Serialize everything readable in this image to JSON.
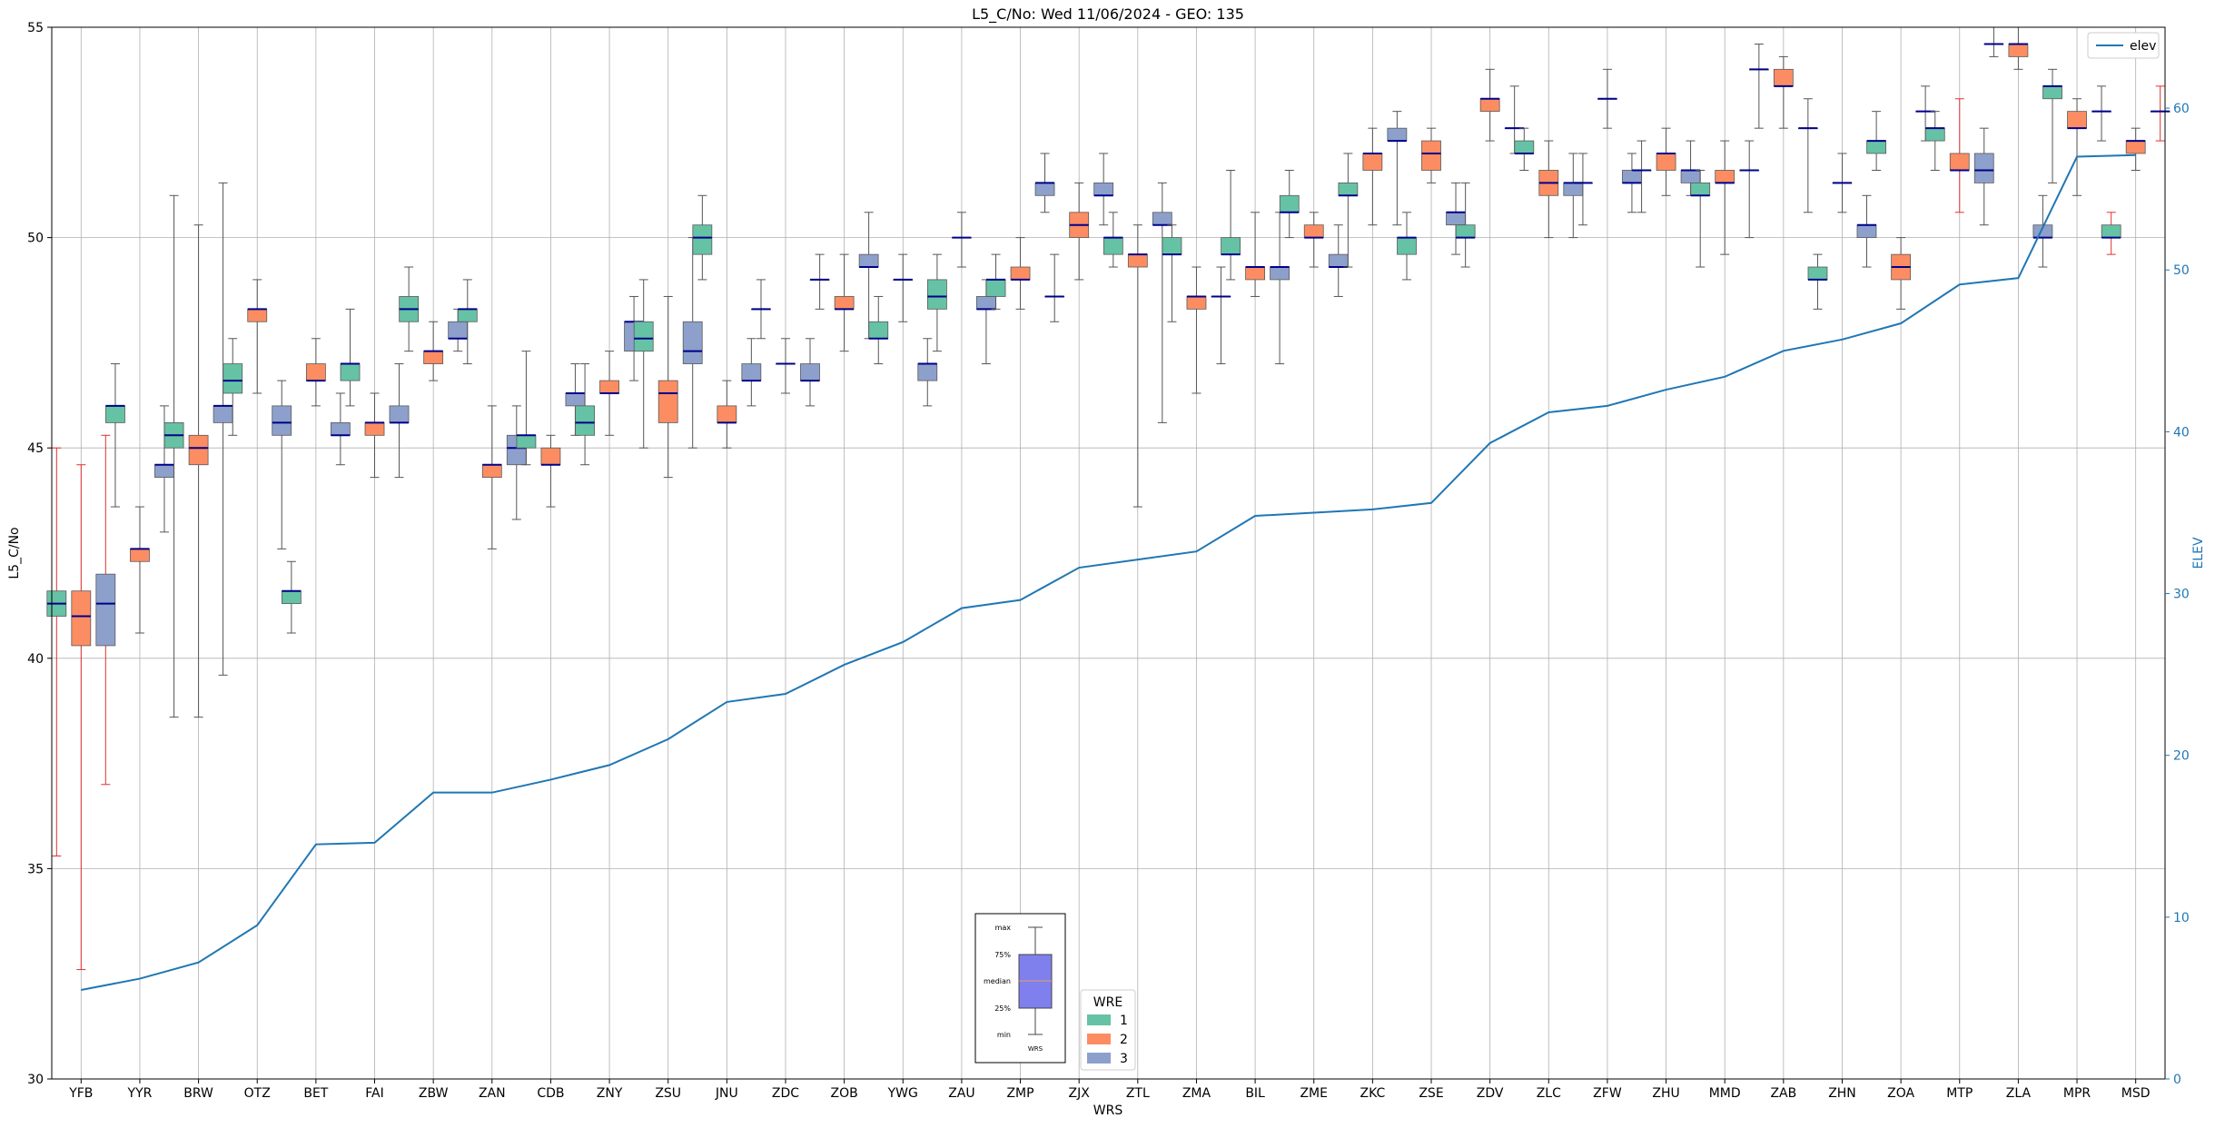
{
  "chart_data": {
    "type": "box",
    "title": "L5_C/No: Wed 11/06/2024 - GEO: 135",
    "xlabel": "WRS",
    "ylabel": "L5_C/No",
    "y2label": "ELEV",
    "ylim": [
      30,
      55
    ],
    "y2lim": [
      0,
      65
    ],
    "yticks": [
      30,
      35,
      40,
      45,
      50,
      55
    ],
    "y2ticks": [
      0,
      10,
      20,
      30,
      40,
      50,
      60
    ],
    "grid": true,
    "colors": {
      "1": "#66c2a5",
      "2": "#fc8d62",
      "3": "#8da0cb",
      "median": "#00008b",
      "elev": "#1f77b4",
      "whisker": "#555555",
      "whisker_alert": "#e03030"
    },
    "categories": [
      "YFB",
      "YYR",
      "BRW",
      "OTZ",
      "BET",
      "FAI",
      "ZBW",
      "ZAN",
      "CDB",
      "ZNY",
      "ZSU",
      "JNU",
      "ZDC",
      "ZOB",
      "YWG",
      "ZAU",
      "ZMP",
      "ZJX",
      "ZTL",
      "ZMA",
      "BIL",
      "ZME",
      "ZKC",
      "ZSE",
      "ZDV",
      "ZLC",
      "ZFW",
      "ZHU",
      "MMD",
      "ZAB",
      "ZHN",
      "ZOA",
      "MTP",
      "ZLA",
      "MPR",
      "MSD"
    ],
    "elev": [
      5.5,
      6.2,
      7.2,
      9.5,
      14.5,
      14.6,
      17.7,
      17.7,
      18.5,
      19.4,
      21.0,
      23.3,
      23.8,
      25.6,
      27.0,
      29.1,
      29.6,
      31.6,
      32.1,
      32.6,
      34.8,
      35.0,
      35.2,
      35.6,
      39.3,
      41.2,
      41.6,
      42.6,
      43.4,
      45.0,
      45.7,
      46.7,
      49.1,
      49.5,
      57.0,
      57.1
    ],
    "boxes": [
      {
        "cat": "YFB",
        "wre": 1,
        "min": 35.3,
        "q1": 41.0,
        "med": 41.3,
        "q3": 41.6,
        "max": 45.0,
        "alert": true
      },
      {
        "cat": "YFB",
        "wre": 2,
        "min": 32.6,
        "q1": 40.3,
        "med": 41.0,
        "q3": 41.6,
        "max": 44.6,
        "alert": true
      },
      {
        "cat": "YFB",
        "wre": 3,
        "min": 37.0,
        "q1": 40.3,
        "med": 41.3,
        "q3": 42.0,
        "max": 45.3,
        "alert": true
      },
      {
        "cat": "YYR",
        "wre": 1,
        "min": 43.6,
        "q1": 45.6,
        "med": 46.0,
        "q3": 46.0,
        "max": 47.0
      },
      {
        "cat": "YYR",
        "wre": 2,
        "min": 40.6,
        "q1": 42.3,
        "med": 42.6,
        "q3": 42.6,
        "max": 43.6
      },
      {
        "cat": "YYR",
        "wre": 3,
        "min": 43.0,
        "q1": 44.3,
        "med": 44.6,
        "q3": 44.6,
        "max": 46.0
      },
      {
        "cat": "BRW",
        "wre": 1,
        "min": 38.6,
        "q1": 45.0,
        "med": 45.3,
        "q3": 45.6,
        "max": 51.0
      },
      {
        "cat": "BRW",
        "wre": 2,
        "min": 38.6,
        "q1": 44.6,
        "med": 45.0,
        "q3": 45.3,
        "max": 50.3
      },
      {
        "cat": "BRW",
        "wre": 3,
        "min": 39.6,
        "q1": 45.6,
        "med": 46.0,
        "q3": 46.0,
        "max": 51.3
      },
      {
        "cat": "OTZ",
        "wre": 1,
        "min": 45.3,
        "q1": 46.3,
        "med": 46.6,
        "q3": 47.0,
        "max": 47.6
      },
      {
        "cat": "OTZ",
        "wre": 2,
        "min": 46.3,
        "q1": 48.0,
        "med": 48.3,
        "q3": 48.3,
        "max": 49.0
      },
      {
        "cat": "OTZ",
        "wre": 3,
        "min": 42.6,
        "q1": 45.3,
        "med": 45.6,
        "q3": 46.0,
        "max": 46.6
      },
      {
        "cat": "BET",
        "wre": 1,
        "min": 40.6,
        "q1": 41.3,
        "med": 41.6,
        "q3": 41.6,
        "max": 42.3
      },
      {
        "cat": "BET",
        "wre": 2,
        "min": 46.0,
        "q1": 46.6,
        "med": 46.6,
        "q3": 47.0,
        "max": 47.6
      },
      {
        "cat": "BET",
        "wre": 3,
        "min": 44.6,
        "q1": 45.3,
        "med": 45.3,
        "q3": 45.6,
        "max": 46.3
      },
      {
        "cat": "FAI",
        "wre": 1,
        "min": 46.0,
        "q1": 46.6,
        "med": 47.0,
        "q3": 47.0,
        "max": 48.3
      },
      {
        "cat": "FAI",
        "wre": 2,
        "min": 44.3,
        "q1": 45.3,
        "med": 45.6,
        "q3": 45.6,
        "max": 46.3
      },
      {
        "cat": "FAI",
        "wre": 3,
        "min": 44.3,
        "q1": 45.6,
        "med": 45.6,
        "q3": 46.0,
        "max": 47.0
      },
      {
        "cat": "ZBW",
        "wre": 1,
        "min": 47.3,
        "q1": 48.0,
        "med": 48.3,
        "q3": 48.6,
        "max": 49.3
      },
      {
        "cat": "ZBW",
        "wre": 2,
        "min": 46.6,
        "q1": 47.0,
        "med": 47.3,
        "q3": 47.3,
        "max": 48.0
      },
      {
        "cat": "ZBW",
        "wre": 3,
        "min": 47.3,
        "q1": 47.6,
        "med": 47.6,
        "q3": 48.0,
        "max": 48.3
      },
      {
        "cat": "ZAN",
        "wre": 1,
        "min": 47.0,
        "q1": 48.0,
        "med": 48.3,
        "q3": 48.3,
        "max": 49.0
      },
      {
        "cat": "ZAN",
        "wre": 2,
        "min": 42.6,
        "q1": 44.3,
        "med": 44.6,
        "q3": 44.6,
        "max": 46.0
      },
      {
        "cat": "ZAN",
        "wre": 3,
        "min": 43.3,
        "q1": 44.6,
        "med": 45.0,
        "q3": 45.3,
        "max": 46.0
      },
      {
        "cat": "CDB",
        "wre": 1,
        "min": 44.6,
        "q1": 45.0,
        "med": 45.3,
        "q3": 45.3,
        "max": 47.3
      },
      {
        "cat": "CDB",
        "wre": 2,
        "min": 43.6,
        "q1": 44.6,
        "med": 44.6,
        "q3": 45.0,
        "max": 45.3
      },
      {
        "cat": "CDB",
        "wre": 3,
        "min": 45.3,
        "q1": 46.0,
        "med": 46.3,
        "q3": 46.3,
        "max": 47.0
      },
      {
        "cat": "ZNY",
        "wre": 1,
        "min": 44.6,
        "q1": 45.3,
        "med": 45.6,
        "q3": 46.0,
        "max": 47.0
      },
      {
        "cat": "ZNY",
        "wre": 2,
        "min": 45.3,
        "q1": 46.3,
        "med": 46.3,
        "q3": 46.6,
        "max": 47.3
      },
      {
        "cat": "ZNY",
        "wre": 3,
        "min": 46.6,
        "q1": 47.3,
        "med": 48.0,
        "q3": 48.0,
        "max": 48.6
      },
      {
        "cat": "ZSU",
        "wre": 1,
        "min": 45.0,
        "q1": 47.3,
        "med": 47.6,
        "q3": 48.0,
        "max": 49.0
      },
      {
        "cat": "ZSU",
        "wre": 2,
        "min": 44.3,
        "q1": 45.6,
        "med": 46.3,
        "q3": 46.6,
        "max": 48.6
      },
      {
        "cat": "ZSU",
        "wre": 3,
        "min": 45.0,
        "q1": 47.0,
        "med": 47.3,
        "q3": 48.0,
        "max": 50.0
      },
      {
        "cat": "JNU",
        "wre": 1,
        "min": 49.0,
        "q1": 49.6,
        "med": 50.0,
        "q3": 50.3,
        "max": 51.0
      },
      {
        "cat": "JNU",
        "wre": 2,
        "min": 45.0,
        "q1": 45.6,
        "med": 45.6,
        "q3": 46.0,
        "max": 46.6
      },
      {
        "cat": "JNU",
        "wre": 3,
        "min": 46.0,
        "q1": 46.6,
        "med": 46.6,
        "q3": 47.0,
        "max": 47.6
      },
      {
        "cat": "ZDC",
        "wre": 1,
        "min": 47.6,
        "q1": 48.3,
        "med": 48.3,
        "q3": 48.3,
        "max": 49.0
      },
      {
        "cat": "ZDC",
        "wre": 2,
        "min": 46.3,
        "q1": 47.0,
        "med": 47.0,
        "q3": 47.0,
        "max": 47.6
      },
      {
        "cat": "ZDC",
        "wre": 3,
        "min": 46.0,
        "q1": 46.6,
        "med": 46.6,
        "q3": 47.0,
        "max": 47.6
      },
      {
        "cat": "ZOB",
        "wre": 1,
        "min": 48.3,
        "q1": 49.0,
        "med": 49.0,
        "q3": 49.0,
        "max": 49.6
      },
      {
        "cat": "ZOB",
        "wre": 2,
        "min": 47.3,
        "q1": 48.3,
        "med": 48.3,
        "q3": 48.6,
        "max": 49.6
      },
      {
        "cat": "ZOB",
        "wre": 3,
        "min": 47.6,
        "q1": 49.3,
        "med": 49.3,
        "q3": 49.6,
        "max": 50.6
      },
      {
        "cat": "YWG",
        "wre": 1,
        "min": 47.0,
        "q1": 47.6,
        "med": 47.6,
        "q3": 48.0,
        "max": 48.6
      },
      {
        "cat": "YWG",
        "wre": 2,
        "min": 48.0,
        "q1": 49.0,
        "med": 49.0,
        "q3": 49.0,
        "max": 49.6
      },
      {
        "cat": "YWG",
        "wre": 3,
        "min": 46.0,
        "q1": 46.6,
        "med": 47.0,
        "q3": 47.0,
        "max": 47.6
      },
      {
        "cat": "ZAU",
        "wre": 1,
        "min": 47.3,
        "q1": 48.3,
        "med": 48.6,
        "q3": 49.0,
        "max": 49.6
      },
      {
        "cat": "ZAU",
        "wre": 2,
        "min": 49.3,
        "q1": 50.0,
        "med": 50.0,
        "q3": 50.0,
        "max": 50.6
      },
      {
        "cat": "ZAU",
        "wre": 3,
        "min": 47.0,
        "q1": 48.3,
        "med": 48.3,
        "q3": 48.6,
        "max": 49.0
      },
      {
        "cat": "ZMP",
        "wre": 1,
        "min": 48.3,
        "q1": 48.6,
        "med": 49.0,
        "q3": 49.0,
        "max": 49.6
      },
      {
        "cat": "ZMP",
        "wre": 2,
        "min": 48.3,
        "q1": 49.0,
        "med": 49.0,
        "q3": 49.3,
        "max": 50.0
      },
      {
        "cat": "ZMP",
        "wre": 3,
        "min": 50.6,
        "q1": 51.0,
        "med": 51.3,
        "q3": 51.3,
        "max": 52.0
      },
      {
        "cat": "ZJX",
        "wre": 1,
        "min": 48.0,
        "q1": 48.6,
        "med": 48.6,
        "q3": 48.6,
        "max": 49.6
      },
      {
        "cat": "ZJX",
        "wre": 2,
        "min": 49.0,
        "q1": 50.0,
        "med": 50.3,
        "q3": 50.6,
        "max": 51.3
      },
      {
        "cat": "ZJX",
        "wre": 3,
        "min": 50.3,
        "q1": 51.0,
        "med": 51.0,
        "q3": 51.3,
        "max": 52.0
      },
      {
        "cat": "ZTL",
        "wre": 1,
        "min": 49.3,
        "q1": 49.6,
        "med": 50.0,
        "q3": 50.0,
        "max": 50.6
      },
      {
        "cat": "ZTL",
        "wre": 2,
        "min": 43.6,
        "q1": 49.3,
        "med": 49.6,
        "q3": 49.6,
        "max": 50.3
      },
      {
        "cat": "ZTL",
        "wre": 3,
        "min": 45.6,
        "q1": 50.3,
        "med": 50.3,
        "q3": 50.6,
        "max": 51.3
      },
      {
        "cat": "ZMA",
        "wre": 1,
        "min": 48.0,
        "q1": 49.6,
        "med": 49.6,
        "q3": 50.0,
        "max": 50.3
      },
      {
        "cat": "ZMA",
        "wre": 2,
        "min": 46.3,
        "q1": 48.3,
        "med": 48.6,
        "q3": 48.6,
        "max": 49.3
      },
      {
        "cat": "ZMA",
        "wre": 3,
        "min": 47.0,
        "q1": 48.6,
        "med": 48.6,
        "q3": 48.6,
        "max": 49.3
      },
      {
        "cat": "BIL",
        "wre": 1,
        "min": 49.0,
        "q1": 49.6,
        "med": 49.6,
        "q3": 50.0,
        "max": 51.6
      },
      {
        "cat": "BIL",
        "wre": 2,
        "min": 48.6,
        "q1": 49.0,
        "med": 49.3,
        "q3": 49.3,
        "max": 50.6
      },
      {
        "cat": "BIL",
        "wre": 3,
        "min": 47.0,
        "q1": 49.0,
        "med": 49.3,
        "q3": 49.3,
        "max": 50.6
      },
      {
        "cat": "ZME",
        "wre": 1,
        "min": 50.0,
        "q1": 50.6,
        "med": 50.6,
        "q3": 51.0,
        "max": 51.6
      },
      {
        "cat": "ZME",
        "wre": 2,
        "min": 49.3,
        "q1": 50.0,
        "med": 50.0,
        "q3": 50.3,
        "max": 50.6
      },
      {
        "cat": "ZME",
        "wre": 3,
        "min": 48.6,
        "q1": 49.3,
        "med": 49.3,
        "q3": 49.6,
        "max": 50.3
      },
      {
        "cat": "ZKC",
        "wre": 1,
        "min": 49.3,
        "q1": 51.0,
        "med": 51.0,
        "q3": 51.3,
        "max": 52.0
      },
      {
        "cat": "ZKC",
        "wre": 2,
        "min": 50.3,
        "q1": 51.6,
        "med": 52.0,
        "q3": 52.0,
        "max": 52.6
      },
      {
        "cat": "ZKC",
        "wre": 3,
        "min": 50.3,
        "q1": 52.3,
        "med": 52.3,
        "q3": 52.6,
        "max": 53.0
      },
      {
        "cat": "ZSE",
        "wre": 1,
        "min": 49.0,
        "q1": 49.6,
        "med": 50.0,
        "q3": 50.0,
        "max": 50.6
      },
      {
        "cat": "ZSE",
        "wre": 2,
        "min": 51.3,
        "q1": 51.6,
        "med": 52.0,
        "q3": 52.3,
        "max": 52.6
      },
      {
        "cat": "ZSE",
        "wre": 3,
        "min": 49.6,
        "q1": 50.3,
        "med": 50.6,
        "q3": 50.6,
        "max": 51.3
      },
      {
        "cat": "ZDV",
        "wre": 1,
        "min": 49.3,
        "q1": 50.0,
        "med": 50.0,
        "q3": 50.3,
        "max": 51.3
      },
      {
        "cat": "ZDV",
        "wre": 2,
        "min": 52.3,
        "q1": 53.0,
        "med": 53.3,
        "q3": 53.3,
        "max": 54.0
      },
      {
        "cat": "ZDV",
        "wre": 3,
        "min": 52.0,
        "q1": 52.6,
        "med": 52.6,
        "q3": 52.6,
        "max": 53.6
      },
      {
        "cat": "ZLC",
        "wre": 1,
        "min": 51.6,
        "q1": 52.0,
        "med": 52.0,
        "q3": 52.3,
        "max": 52.6
      },
      {
        "cat": "ZLC",
        "wre": 2,
        "min": 50.0,
        "q1": 51.0,
        "med": 51.3,
        "q3": 51.6,
        "max": 52.3
      },
      {
        "cat": "ZLC",
        "wre": 3,
        "min": 50.0,
        "q1": 51.0,
        "med": 51.3,
        "q3": 51.3,
        "max": 52.0
      },
      {
        "cat": "ZFW",
        "wre": 1,
        "min": 50.3,
        "q1": 51.3,
        "med": 51.3,
        "q3": 51.3,
        "max": 52.0
      },
      {
        "cat": "ZFW",
        "wre": 2,
        "min": 52.6,
        "q1": 53.3,
        "med": 53.3,
        "q3": 53.3,
        "max": 54.0
      },
      {
        "cat": "ZFW",
        "wre": 3,
        "min": 50.6,
        "q1": 51.3,
        "med": 51.3,
        "q3": 51.6,
        "max": 52.0
      },
      {
        "cat": "ZHU",
        "wre": 1,
        "min": 50.6,
        "q1": 51.6,
        "med": 51.6,
        "q3": 51.6,
        "max": 52.3
      },
      {
        "cat": "ZHU",
        "wre": 2,
        "min": 51.0,
        "q1": 51.6,
        "med": 52.0,
        "q3": 52.0,
        "max": 52.6
      },
      {
        "cat": "ZHU",
        "wre": 3,
        "min": 51.0,
        "q1": 51.3,
        "med": 51.6,
        "q3": 51.6,
        "max": 52.3
      },
      {
        "cat": "MMD",
        "wre": 1,
        "min": 49.3,
        "q1": 51.0,
        "med": 51.0,
        "q3": 51.3,
        "max": 51.6
      },
      {
        "cat": "MMD",
        "wre": 2,
        "min": 49.6,
        "q1": 51.3,
        "med": 51.3,
        "q3": 51.6,
        "max": 52.3
      },
      {
        "cat": "MMD",
        "wre": 3,
        "min": 50.0,
        "q1": 51.6,
        "med": 51.6,
        "q3": 51.6,
        "max": 52.3
      },
      {
        "cat": "ZAB",
        "wre": 1,
        "min": 52.6,
        "q1": 54.0,
        "med": 54.0,
        "q3": 54.0,
        "max": 54.6
      },
      {
        "cat": "ZAB",
        "wre": 2,
        "min": 52.6,
        "q1": 53.6,
        "med": 53.6,
        "q3": 54.0,
        "max": 54.3
      },
      {
        "cat": "ZAB",
        "wre": 3,
        "min": 50.6,
        "q1": 52.6,
        "med": 52.6,
        "q3": 52.6,
        "max": 53.3
      },
      {
        "cat": "ZHN",
        "wre": 1,
        "min": 48.3,
        "q1": 49.0,
        "med": 49.0,
        "q3": 49.3,
        "max": 49.6
      },
      {
        "cat": "ZHN",
        "wre": 2,
        "min": 50.6,
        "q1": 51.3,
        "med": 51.3,
        "q3": 51.3,
        "max": 52.0
      },
      {
        "cat": "ZHN",
        "wre": 3,
        "min": 49.3,
        "q1": 50.0,
        "med": 50.3,
        "q3": 50.3,
        "max": 51.0
      },
      {
        "cat": "ZOA",
        "wre": 1,
        "min": 51.6,
        "q1": 52.0,
        "med": 52.3,
        "q3": 52.3,
        "max": 53.0
      },
      {
        "cat": "ZOA",
        "wre": 2,
        "min": 48.3,
        "q1": 49.0,
        "med": 49.3,
        "q3": 49.6,
        "max": 50.0
      },
      {
        "cat": "ZOA",
        "wre": 3,
        "min": 52.3,
        "q1": 53.0,
        "med": 53.0,
        "q3": 53.0,
        "max": 53.6
      },
      {
        "cat": "MTP",
        "wre": 1,
        "min": 51.6,
        "q1": 52.3,
        "med": 52.6,
        "q3": 52.6,
        "max": 53.0
      },
      {
        "cat": "MTP",
        "wre": 2,
        "min": 50.6,
        "q1": 51.6,
        "med": 51.6,
        "q3": 52.0,
        "max": 53.3,
        "alert": true
      },
      {
        "cat": "MTP",
        "wre": 3,
        "min": 50.3,
        "q1": 51.3,
        "med": 51.6,
        "q3": 52.0,
        "max": 52.6
      },
      {
        "cat": "ZLA",
        "wre": 1,
        "min": 54.3,
        "q1": 54.6,
        "med": 54.6,
        "q3": 54.6,
        "max": 55.0
      },
      {
        "cat": "ZLA",
        "wre": 2,
        "min": 54.0,
        "q1": 54.3,
        "med": 54.6,
        "q3": 54.6,
        "max": 55.0
      },
      {
        "cat": "ZLA",
        "wre": 3,
        "min": 49.3,
        "q1": 50.0,
        "med": 50.0,
        "q3": 50.3,
        "max": 51.0
      },
      {
        "cat": "MPR",
        "wre": 1,
        "min": 51.3,
        "q1": 53.3,
        "med": 53.6,
        "q3": 53.6,
        "max": 54.0
      },
      {
        "cat": "MPR",
        "wre": 2,
        "min": 51.0,
        "q1": 52.6,
        "med": 52.6,
        "q3": 53.0,
        "max": 53.3
      },
      {
        "cat": "MPR",
        "wre": 3,
        "min": 52.3,
        "q1": 53.0,
        "med": 53.0,
        "q3": 53.0,
        "max": 53.6
      },
      {
        "cat": "MSD",
        "wre": 1,
        "min": 49.6,
        "q1": 50.0,
        "med": 50.0,
        "q3": 50.3,
        "max": 50.6,
        "alert": true
      },
      {
        "cat": "MSD",
        "wre": 2,
        "min": 51.6,
        "q1": 52.0,
        "med": 52.3,
        "q3": 52.3,
        "max": 52.6
      },
      {
        "cat": "MSD",
        "wre": 3,
        "min": 52.3,
        "q1": 53.0,
        "med": 53.0,
        "q3": 53.0,
        "max": 53.6,
        "alert": true
      }
    ],
    "legend_elev": {
      "label": "elev",
      "placement": "top-right"
    },
    "legend_wre": {
      "title": "WRE",
      "entries": [
        "1",
        "2",
        "3"
      ],
      "placement": "bottom-center"
    },
    "key_box": {
      "labels": [
        "max",
        "75%",
        "median",
        "25%",
        "min"
      ],
      "xlabel": "WRS",
      "placement": "bottom-center"
    }
  }
}
